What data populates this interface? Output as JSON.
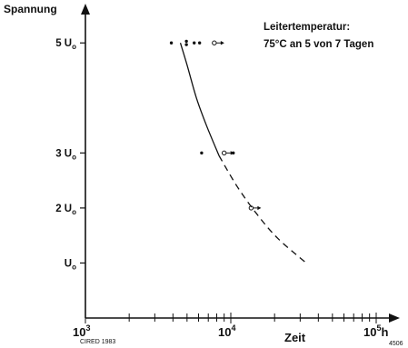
{
  "chart_data": {
    "type": "scatter",
    "title": "",
    "xlabel": "Zeit",
    "ylabel": "Spannung",
    "x_scale": "log",
    "xlim": [
      1000,
      100000
    ],
    "x_ticks": [
      {
        "value": 1000,
        "base": "10",
        "exp": "3",
        "suffix": ""
      },
      {
        "value": 10000,
        "base": "10",
        "exp": "4",
        "suffix": ""
      },
      {
        "value": 100000,
        "base": "10",
        "exp": "5",
        "suffix": "h"
      }
    ],
    "y_ticks": [
      {
        "value": 1,
        "label": "U",
        "sub": "o"
      },
      {
        "value": 2,
        "label": "2 U",
        "sub": "o"
      },
      {
        "value": 3,
        "label": "3 U",
        "sub": "o"
      },
      {
        "value": 5,
        "label": "5 U",
        "sub": "o"
      }
    ],
    "ylim": [
      0,
      5.45
    ],
    "annotation": [
      "Leitertemperatur:",
      "75°C an 5 von 7 Tagen"
    ],
    "footnote_left": "CIRED 1983",
    "footnote_right": "4506",
    "failures": [
      {
        "x": 3900,
        "y": 5
      },
      {
        "x": 4950,
        "y": 5.03
      },
      {
        "x": 4950,
        "y": 4.97
      },
      {
        "x": 5600,
        "y": 5
      },
      {
        "x": 6100,
        "y": 5
      },
      {
        "x": 6300,
        "y": 3
      },
      {
        "x": 10400,
        "y": 3
      }
    ],
    "runouts": [
      {
        "x": 7700,
        "y": 5
      },
      {
        "x": 9000,
        "y": 3
      },
      {
        "x": 13800,
        "y": 2
      }
    ],
    "curve_solid": [
      {
        "x": 4500,
        "y": 5
      },
      {
        "x": 5000,
        "y": 4.6
      },
      {
        "x": 5800,
        "y": 4.0
      },
      {
        "x": 6800,
        "y": 3.5
      },
      {
        "x": 8300,
        "y": 2.95
      }
    ],
    "curve_dashed": [
      {
        "x": 8300,
        "y": 2.95
      },
      {
        "x": 11000,
        "y": 2.4
      },
      {
        "x": 15000,
        "y": 1.9
      },
      {
        "x": 21000,
        "y": 1.45
      },
      {
        "x": 33000,
        "y": 1.0
      }
    ]
  }
}
